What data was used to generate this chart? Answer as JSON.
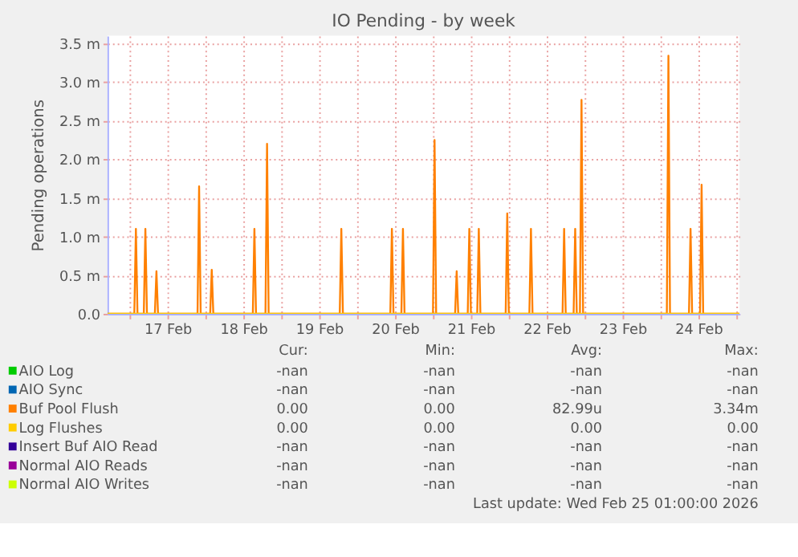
{
  "chart_data": {
    "type": "line",
    "title": "IO Pending - by week",
    "ylabel": "Pending operations",
    "xlim": [
      "2026-02-16T17:00",
      "2026-02-25T01:00"
    ],
    "xticks": [
      {
        "value": "2026-02-17T00:00",
        "label": null
      },
      {
        "value": "2026-02-17T12:00",
        "label": "17 Feb"
      },
      {
        "value": "2026-02-18T00:00",
        "label": null
      },
      {
        "value": "2026-02-18T12:00",
        "label": "18 Feb"
      },
      {
        "value": "2026-02-19T00:00",
        "label": null
      },
      {
        "value": "2026-02-19T12:00",
        "label": "19 Feb"
      },
      {
        "value": "2026-02-20T00:00",
        "label": null
      },
      {
        "value": "2026-02-20T12:00",
        "label": "20 Feb"
      },
      {
        "value": "2026-02-21T00:00",
        "label": null
      },
      {
        "value": "2026-02-21T12:00",
        "label": "21 Feb"
      },
      {
        "value": "2026-02-22T00:00",
        "label": null
      },
      {
        "value": "2026-02-22T12:00",
        "label": "22 Feb"
      },
      {
        "value": "2026-02-23T00:00",
        "label": null
      },
      {
        "value": "2026-02-23T12:00",
        "label": "23 Feb"
      },
      {
        "value": "2026-02-24T00:00",
        "label": null
      },
      {
        "value": "2026-02-24T12:00",
        "label": "24 Feb"
      },
      {
        "value": "2026-02-25T00:00",
        "label": null
      }
    ],
    "ylim": [
      0,
      3.6
    ],
    "yticks": [
      {
        "value": 0,
        "label": "0.0"
      },
      {
        "value": 0.5,
        "label": "0.5 m"
      },
      {
        "value": 1,
        "label": "1.0 m"
      },
      {
        "value": 1.5,
        "label": "1.5 m"
      },
      {
        "value": 2,
        "label": "2.0 m"
      },
      {
        "value": 2.5,
        "label": "2.5 m"
      },
      {
        "value": 3,
        "label": "3.0 m"
      },
      {
        "value": 3.5,
        "label": "3.5 m"
      }
    ],
    "grid": true,
    "legend": "bottom",
    "marker": "none",
    "line_style": "solid",
    "series": [
      {
        "name": "AIO Log",
        "color": "#00cc00"
      },
      {
        "name": "AIO Sync",
        "color": "#0066b3"
      },
      {
        "name": "Buf Pool Flush",
        "color": "#ff8000",
        "x": [
          "2026-02-16T17:00",
          "2026-02-17T01:30",
          "2026-02-17T02:00",
          "2026-02-17T02:30",
          "2026-02-17T04:30",
          "2026-02-17T05:00",
          "2026-02-17T05:30",
          "2026-02-17T08:00",
          "2026-02-17T08:30",
          "2026-02-17T09:00",
          "2026-02-17T21:30",
          "2026-02-17T22:00",
          "2026-02-17T22:30",
          "2026-02-18T01:30",
          "2026-02-18T02:00",
          "2026-02-18T02:30",
          "2026-02-18T15:00",
          "2026-02-18T15:30",
          "2026-02-18T16:00",
          "2026-02-18T19:00",
          "2026-02-18T19:30",
          "2026-02-18T20:00",
          "2026-02-19T18:30",
          "2026-02-19T19:00",
          "2026-02-19T19:30",
          "2026-02-20T10:30",
          "2026-02-20T11:00",
          "2026-02-20T11:30",
          "2026-02-20T14:00",
          "2026-02-20T14:30",
          "2026-02-20T15:00",
          "2026-02-21T00:00",
          "2026-02-21T00:30",
          "2026-02-21T01:00",
          "2026-02-21T07:00",
          "2026-02-21T07:30",
          "2026-02-21T08:00",
          "2026-02-21T11:00",
          "2026-02-21T11:30",
          "2026-02-21T12:00",
          "2026-02-21T14:00",
          "2026-02-21T14:30",
          "2026-02-21T15:00",
          "2026-02-21T23:00",
          "2026-02-21T23:30",
          "2026-02-22T00:00",
          "2026-02-22T06:30",
          "2026-02-22T07:00",
          "2026-02-22T07:30",
          "2026-02-22T17:00",
          "2026-02-22T17:30",
          "2026-02-22T18:00",
          "2026-02-22T20:30",
          "2026-02-22T21:00",
          "2026-02-22T21:30",
          "2026-02-22T22:30",
          "2026-02-22T23:00",
          "2026-02-22T23:30",
          "2026-02-24T02:00",
          "2026-02-24T02:30",
          "2026-02-24T03:00",
          "2026-02-24T09:00",
          "2026-02-24T09:30",
          "2026-02-24T10:00",
          "2026-02-24T12:30",
          "2026-02-24T13:00",
          "2026-02-24T13:30",
          "2026-02-25T01:00"
        ],
        "values": [
          0,
          0,
          1.1,
          0,
          0,
          1.1,
          0,
          0,
          0.55,
          0,
          0,
          1.65,
          0,
          0,
          0.57,
          0,
          0,
          1.1,
          0,
          0,
          2.2,
          0,
          0,
          1.1,
          0,
          0,
          1.1,
          0,
          0,
          1.1,
          0,
          0,
          2.25,
          0,
          0,
          0.55,
          0,
          0,
          1.1,
          0,
          0,
          1.1,
          0,
          0,
          1.3,
          0,
          0,
          1.1,
          0,
          0,
          1.1,
          0,
          0,
          1.1,
          0,
          0,
          2.77,
          0,
          0,
          3.34,
          0,
          0,
          1.1,
          0,
          0,
          1.67,
          0,
          0
        ]
      },
      {
        "name": "Log Flushes",
        "color": "#ffcc00",
        "x": [
          "2026-02-16T17:00",
          "2026-02-25T01:00"
        ],
        "values": [
          0,
          0
        ]
      },
      {
        "name": "Insert Buf AIO Read",
        "color": "#330099"
      },
      {
        "name": "Normal AIO Reads",
        "color": "#990099"
      },
      {
        "name": "Normal AIO Writes",
        "color": "#ccff00"
      }
    ],
    "annotations": [
      "Cur:",
      "Min:",
      "Avg:",
      "Max:",
      "-nan",
      "-nan",
      "-nan",
      "-nan",
      "-nan",
      "-nan",
      "-nan",
      "-nan",
      "0.00",
      "0.00",
      "82.99u",
      "3.34m",
      "0.00",
      "0.00",
      "0.00",
      "0.00",
      "-nan",
      "-nan",
      "-nan",
      "-nan",
      "-nan",
      "-nan",
      "-nan",
      "-nan",
      "-nan",
      "-nan",
      "-nan",
      "-nan",
      "Last update: Wed Feb 25 01:00:00 2026"
    ]
  }
}
